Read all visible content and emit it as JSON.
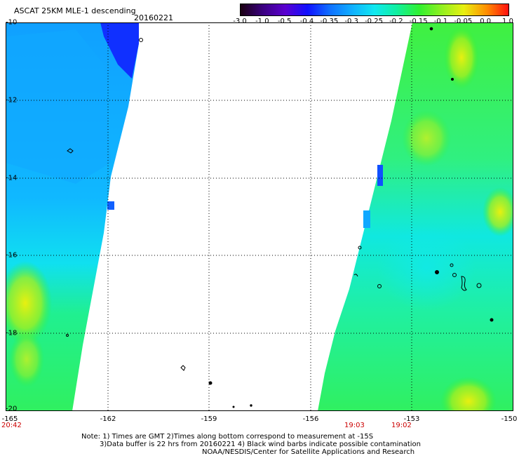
{
  "title": "ASCAT 25KM MLE-1 descending",
  "date": "20160221",
  "colorbar": {
    "labels": [
      "-3.0",
      "-1.0",
      "-0.5",
      "-0.4",
      "-0.35",
      "-0.3",
      "-0.25",
      "-0.2",
      "-0.15",
      "-0.1",
      "-0.05",
      "0.0",
      "1.0"
    ],
    "colors": [
      "#1a0010",
      "#3a0080",
      "#5a00d0",
      "#1010ff",
      "#1070ff",
      "#10b0ff",
      "#10e8f0",
      "#10f0a0",
      "#30f030",
      "#90f020",
      "#e8f010",
      "#ff9000",
      "#ff1010"
    ]
  },
  "map": {
    "lon_ticks": [
      "-165",
      "-162",
      "-159",
      "-156",
      "-153",
      "-150"
    ],
    "lat_ticks": [
      "-10",
      "-12",
      "-14",
      "-16",
      "-18",
      "-20"
    ],
    "lon_range": [
      -165,
      -150
    ],
    "lat_range": [
      -20,
      -10
    ],
    "grid": "dotted"
  },
  "times": {
    "left": "20:42",
    "mid1": "19:03",
    "mid2": "19:02"
  },
  "notes": {
    "line1": "Note: 1) Times are GMT 2)Times along bottom correspond to measurement at -15S",
    "line2": "3)Data buffer is 22 hrs from 20160221 4) Black wind barbs indicate possible contamination",
    "line3": "NOAA/NESDIS/Center for Satellite Applications and Research"
  }
}
